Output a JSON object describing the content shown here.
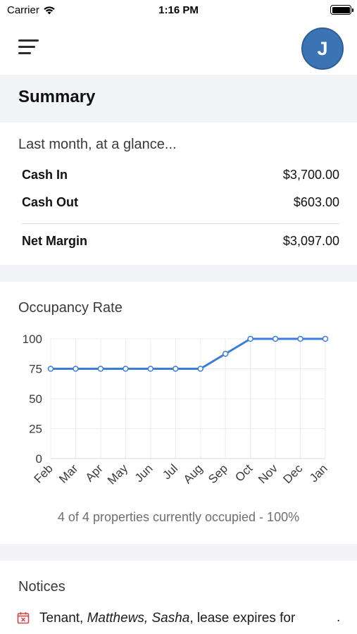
{
  "status_bar": {
    "carrier": "Carrier",
    "time": "1:16 PM"
  },
  "header": {
    "avatar_initial": "J"
  },
  "summary": {
    "title": "Summary",
    "glance_title": "Last month, at a glance...",
    "cash_in_label": "Cash In",
    "cash_in_value": "$3,700.00",
    "cash_out_label": "Cash Out",
    "cash_out_value": "$603.00",
    "net_margin_label": "Net Margin",
    "net_margin_value": "$3,097.00"
  },
  "occupancy": {
    "title": "Occupancy Rate",
    "footer": "4 of 4 properties currently occupied - 100%"
  },
  "chart_data": {
    "type": "line",
    "title": "Occupancy Rate",
    "categories": [
      "Feb",
      "Mar",
      "Apr",
      "May",
      "Jun",
      "Jul",
      "Aug",
      "Sep",
      "Oct",
      "Nov",
      "Dec",
      "Jan"
    ],
    "series": [
      {
        "values": [
          75,
          75,
          75,
          75,
          75,
          75,
          75,
          87.5,
          100,
          100,
          100,
          100
        ]
      }
    ],
    "yticks": [
      0,
      25,
      50,
      75,
      100
    ],
    "ylim": [
      0,
      100
    ],
    "grid": true,
    "color": "#3b7ddd"
  },
  "notices": {
    "title": "Notices",
    "notice_prefix": "Tenant, ",
    "notice_name": "Matthews, Sasha",
    "notice_suffix": ", lease expires for",
    "notice_trailing": "."
  },
  "colors": {
    "accent": "#3b7ddd",
    "avatar": "#3c73b4",
    "section_bg": "#f2f4f7",
    "notice_icon": "#d0454c"
  }
}
